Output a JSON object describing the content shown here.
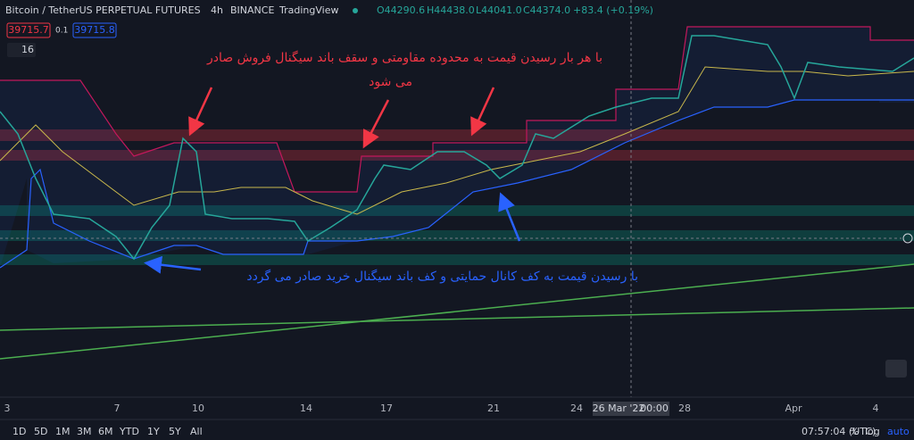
{
  "header": {
    "symbol": "Bitcoin / TetherUS PERPETUAL FUTURES",
    "interval": "4h",
    "exchange": "BINANCE",
    "source": "TradingView",
    "open": "O44290.6",
    "high": "H44438.0",
    "low": "L44041.0",
    "close": "C44374.0",
    "change": "+83.4 (+0.19%)"
  },
  "order_panel": {
    "sell": "39715.7",
    "spread": "0.1",
    "buy": "39715.8",
    "indicators": "16"
  },
  "annotations": {
    "sell_line1": "با هر بار رسیدن قیمت به محدوده مقاومتی و سقف باند سیگنال فروش صادر",
    "sell_line2": "می شود",
    "buy": "با رسیدن قیمت به کف کانال حمایتی و کف باند سیگنال خرید صادر می گردد"
  },
  "x_axis": {
    "labels": [
      "3",
      "7",
      "10",
      "14",
      "17",
      "21",
      "24",
      "28",
      "Apr",
      "4"
    ],
    "cursor_date": "26 Mar '22",
    "cursor_time": "00:00"
  },
  "bottom_bar": {
    "ranges": [
      "1D",
      "5D",
      "1M",
      "3M",
      "6M",
      "YTD",
      "1Y",
      "5Y",
      "All"
    ],
    "clock": "07:57:04 (UTC)",
    "percent": "%",
    "log": "log",
    "auto": "auto"
  }
}
